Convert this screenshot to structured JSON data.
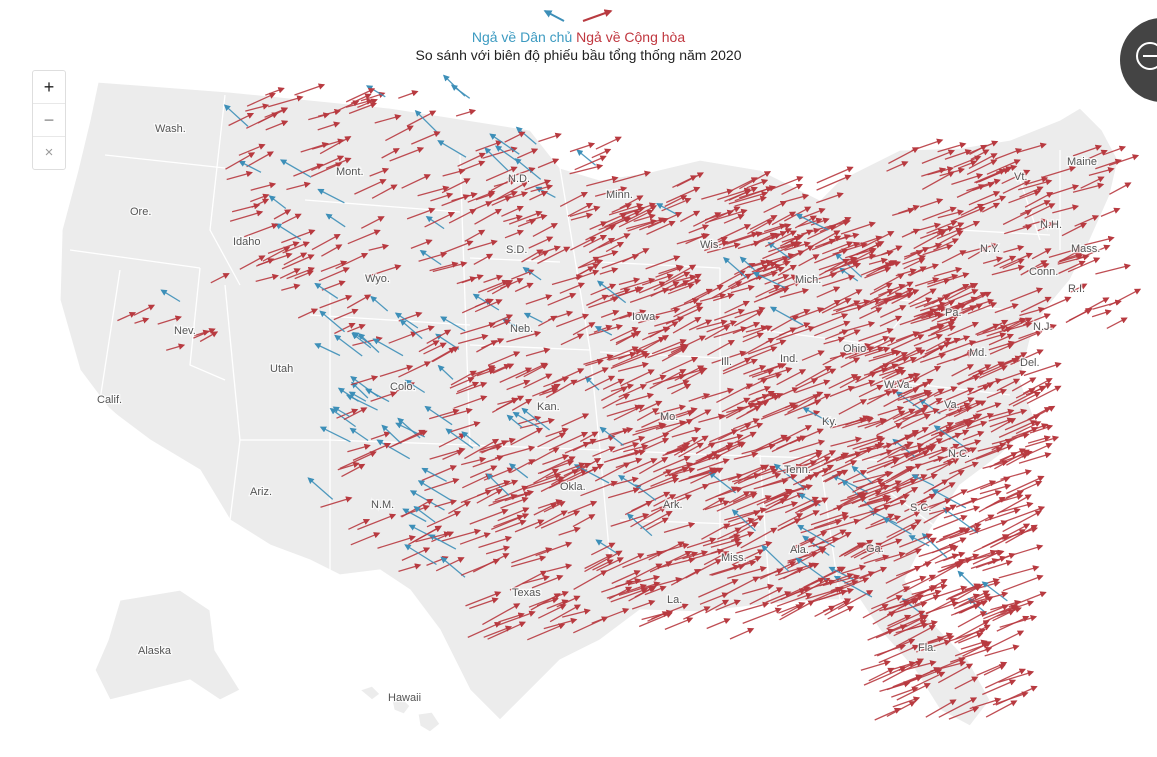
{
  "legend": {
    "dem_label": "Ngả về Dân chủ",
    "rep_label": "Ngả về Cộng hòa",
    "subtitle": "So sánh với biên độ phiếu bầu tổng thống năm 2020"
  },
  "controls": {
    "zoom_in": "+",
    "zoom_out": "−",
    "reset": "×"
  },
  "colors": {
    "dem": "#3d8fb8",
    "rep": "#b83a40",
    "land": "#ececec",
    "border": "#ffffff"
  },
  "states": {
    "wash": "Wash.",
    "ore": "Ore.",
    "calif": "Calif.",
    "idaho": "Idaho",
    "nev": "Nev.",
    "utah": "Utah",
    "ariz": "Ariz.",
    "mont": "Mont.",
    "wyo": "Wyo.",
    "colo": "Colo.",
    "nm": "N.M.",
    "nd": "N.D.",
    "sd": "S.D.",
    "neb": "Neb.",
    "kan": "Kan.",
    "okla": "Okla.",
    "texas": "Texas",
    "minn": "Minn.",
    "iowa": "Iowa",
    "mo": "Mo.",
    "ark": "Ark.",
    "la": "La.",
    "wis": "Wis.",
    "ill": "Ill.",
    "mich": "Mich.",
    "ind": "Ind.",
    "ohio": "Ohio",
    "ky": "Ky.",
    "tenn": "Tenn.",
    "miss": "Miss.",
    "ala": "Ala.",
    "ga": "Ga.",
    "fla": "Fla.",
    "sc": "S.C.",
    "nc": "N.C.",
    "va": "Va.",
    "wva": "W.Va.",
    "pa": "Pa.",
    "ny": "N.Y.",
    "vt": "Vt.",
    "nh": "N.H.",
    "maine": "Maine",
    "mass": "Mass.",
    "conn": "Conn.",
    "ri": "R.I.",
    "nj": "N.J.",
    "md": "Md.",
    "del": "Del.",
    "alaska": "Alaska",
    "hawaii": "Hawaii"
  }
}
